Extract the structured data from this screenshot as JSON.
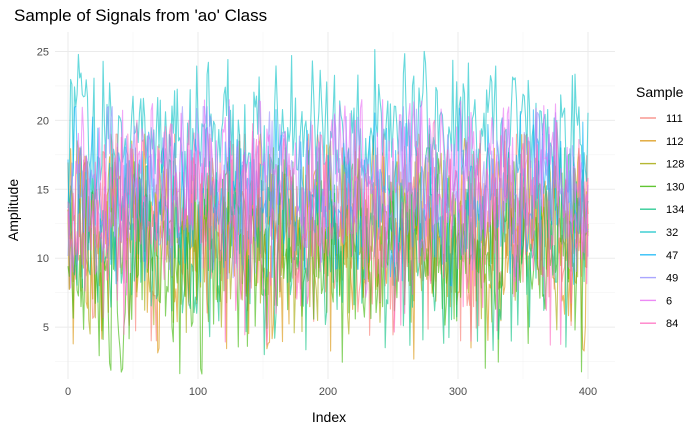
{
  "chart_data": {
    "type": "line",
    "title": "Sample of Signals from 'ao' Class",
    "xlabel": "Index",
    "ylabel": "Amplitude",
    "xlim": [
      0,
      400
    ],
    "ylim": [
      1.5,
      25.5
    ],
    "x_ticks": [
      0,
      100,
      200,
      300,
      400
    ],
    "y_ticks": [
      5,
      10,
      15,
      20,
      25
    ],
    "grid": true,
    "legend": {
      "title": "Sample",
      "position": "right"
    },
    "n_points": 401,
    "series": [
      {
        "name": "111",
        "color": "#F8766D",
        "mean": 12.5,
        "amplitude": 3.2,
        "min": 4.0,
        "max": 19.0
      },
      {
        "name": "112",
        "color": "#D89000",
        "mean": 12.0,
        "amplitude": 3.4,
        "min": 2.6,
        "max": 19.0
      },
      {
        "name": "128",
        "color": "#A3A500",
        "mean": 11.8,
        "amplitude": 3.0,
        "min": 4.5,
        "max": 18.5
      },
      {
        "name": "130",
        "color": "#39B600",
        "mean": 10.5,
        "amplitude": 3.4,
        "min": 1.6,
        "max": 17.0
      },
      {
        "name": "134",
        "color": "#00BF7D",
        "mean": 11.5,
        "amplitude": 3.2,
        "min": 3.0,
        "max": 18.0
      },
      {
        "name": "32",
        "color": "#00BFC4",
        "mean": 19.0,
        "amplitude": 2.4,
        "min": 13.0,
        "max": 25.3
      },
      {
        "name": "47",
        "color": "#00B0F6",
        "mean": 14.5,
        "amplitude": 2.6,
        "min": 8.0,
        "max": 21.0
      },
      {
        "name": "49",
        "color": "#9590FF",
        "mean": 15.0,
        "amplitude": 2.6,
        "min": 8.0,
        "max": 21.0
      },
      {
        "name": "6",
        "color": "#E76BF3",
        "mean": 15.5,
        "amplitude": 2.8,
        "min": 7.0,
        "max": 21.5
      },
      {
        "name": "84",
        "color": "#FF62BC",
        "mean": 13.0,
        "amplitude": 3.0,
        "min": 3.6,
        "max": 20.0
      }
    ]
  }
}
